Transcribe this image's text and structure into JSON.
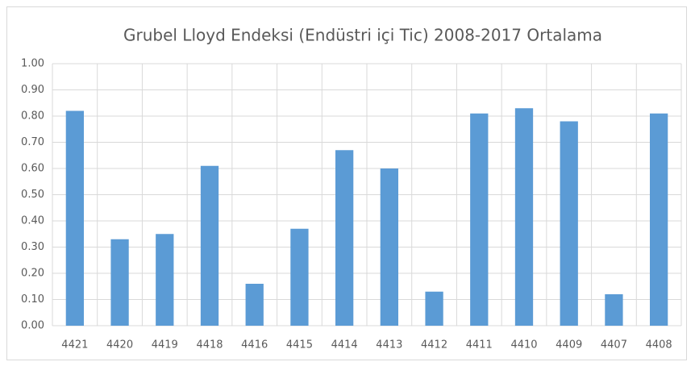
{
  "chart_data": {
    "type": "bar",
    "title": "Grubel Lloyd Endeksi (Endüstri içi Tic) 2008-2017 Ortalama",
    "categories": [
      "4421",
      "4420",
      "4419",
      "4418",
      "4416",
      "4415",
      "4414",
      "4413",
      "4412",
      "4411",
      "4410",
      "4409",
      "4407",
      "4408"
    ],
    "values": [
      0.82,
      0.33,
      0.35,
      0.61,
      0.16,
      0.37,
      0.67,
      0.6,
      0.13,
      0.81,
      0.83,
      0.78,
      0.12,
      0.81
    ],
    "color": "#5b9bd5",
    "ylim": [
      0,
      1
    ],
    "yticks": [
      {
        "value": 0,
        "label": "0.00"
      },
      {
        "value": 0.1,
        "label": "0.10"
      },
      {
        "value": 0.2,
        "label": "0.20"
      },
      {
        "value": 0.3,
        "label": "0.30"
      },
      {
        "value": 0.4,
        "label": "0.40"
      },
      {
        "value": 0.5,
        "label": "0.50"
      },
      {
        "value": 0.6,
        "label": "0.60"
      },
      {
        "value": 0.7,
        "label": "0.70"
      },
      {
        "value": 0.8,
        "label": "0.80"
      },
      {
        "value": 0.9,
        "label": "0.90"
      },
      {
        "value": 1,
        "label": "1.00"
      }
    ],
    "grid": true
  }
}
